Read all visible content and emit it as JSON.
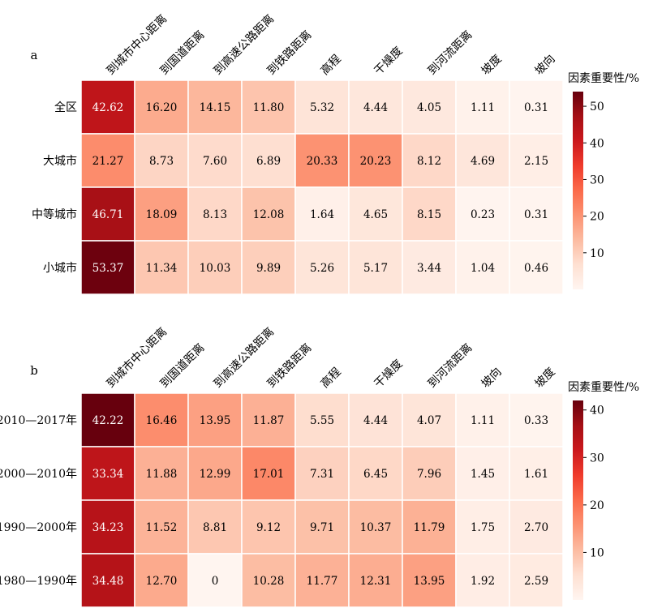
{
  "chart_data": [
    {
      "type": "heatmap",
      "panel_label": "a",
      "columns": [
        "到城市中心距离",
        "到国道距离",
        "到高速公路距离",
        "到铁路距离",
        "高程",
        "干燥度",
        "到河流距离",
        "坡度",
        "坡向"
      ],
      "rows": [
        "全区",
        "大城市",
        "中等城市",
        "小城市"
      ],
      "values": [
        [
          42.62,
          16.2,
          14.15,
          11.8,
          5.32,
          4.44,
          4.05,
          1.11,
          0.31
        ],
        [
          21.27,
          8.73,
          7.6,
          6.89,
          20.33,
          20.23,
          8.12,
          4.69,
          2.15
        ],
        [
          46.71,
          18.09,
          8.13,
          12.08,
          1.64,
          4.65,
          8.15,
          0.23,
          0.31
        ],
        [
          53.37,
          11.34,
          10.03,
          9.89,
          5.26,
          5.17,
          3.44,
          1.04,
          0.46
        ]
      ],
      "labels": [
        [
          "42.62",
          "16.20",
          "14.15",
          "11.80",
          "5.32",
          "4.44",
          "4.05",
          "1.11",
          "0.31"
        ],
        [
          "21.27",
          "8.73",
          "7.60",
          "6.89",
          "20.33",
          "20.23",
          "8.12",
          "4.69",
          "2.15"
        ],
        [
          "46.71",
          "18.09",
          "8.13",
          "12.08",
          "1.64",
          "4.65",
          "8.15",
          "0.23",
          "0.31"
        ],
        [
          "53.37",
          "11.34",
          "10.03",
          "9.89",
          "5.26",
          "5.17",
          "3.44",
          "1.04",
          "0.46"
        ]
      ],
      "colorbar": {
        "title": "因素重要性/%",
        "range": [
          0,
          54
        ],
        "ticks": [
          10,
          20,
          30,
          40,
          50
        ],
        "tick_labels": [
          "10",
          "20",
          "30",
          "40",
          "50"
        ]
      }
    },
    {
      "type": "heatmap",
      "panel_label": "b",
      "columns": [
        "到城市中心距离",
        "到国道距离",
        "到高速公路距离",
        "到铁路距离",
        "高程",
        "干燥度",
        "到河流距离",
        "坡向",
        "坡度"
      ],
      "rows": [
        "2010—2017年",
        "2000—2010年",
        "1990—2000年",
        "1980—1990年"
      ],
      "values": [
        [
          42.22,
          16.46,
          13.95,
          11.87,
          5.55,
          4.44,
          4.07,
          1.11,
          0.33
        ],
        [
          33.34,
          11.88,
          12.99,
          17.01,
          7.31,
          6.45,
          7.96,
          1.45,
          1.61
        ],
        [
          34.23,
          11.52,
          8.81,
          9.12,
          9.71,
          10.37,
          11.79,
          1.75,
          2.7
        ],
        [
          34.48,
          12.7,
          0,
          10.28,
          11.77,
          12.31,
          13.95,
          1.92,
          2.59
        ]
      ],
      "labels": [
        [
          "42.22",
          "16.46",
          "13.95",
          "11.87",
          "5.55",
          "4.44",
          "4.07",
          "1.11",
          "0.33"
        ],
        [
          "33.34",
          "11.88",
          "12.99",
          "17.01",
          "7.31",
          "6.45",
          "7.96",
          "1.45",
          "1.61"
        ],
        [
          "34.23",
          "11.52",
          "8.81",
          "9.12",
          "9.71",
          "10.37",
          "11.79",
          "1.75",
          "2.70"
        ],
        [
          "34.48",
          "12.70",
          "0",
          "10.28",
          "11.77",
          "12.31",
          "13.95",
          "1.92",
          "2.59"
        ]
      ],
      "colorbar": {
        "title": "因素重要性/%",
        "range": [
          0,
          42
        ],
        "ticks": [
          10,
          20,
          30,
          40
        ],
        "tick_labels": [
          "10",
          "20",
          "30",
          "40"
        ]
      }
    }
  ],
  "colors": {
    "scale": [
      "#fff5f0",
      "#fee0d2",
      "#fcbba1",
      "#fc9272",
      "#fb6a4a",
      "#ef3b2c",
      "#cb181d",
      "#a50f15",
      "#67000d"
    ],
    "light_text": "#ffffff",
    "dark_text": "#000000",
    "cell_border": "#ffffff"
  }
}
